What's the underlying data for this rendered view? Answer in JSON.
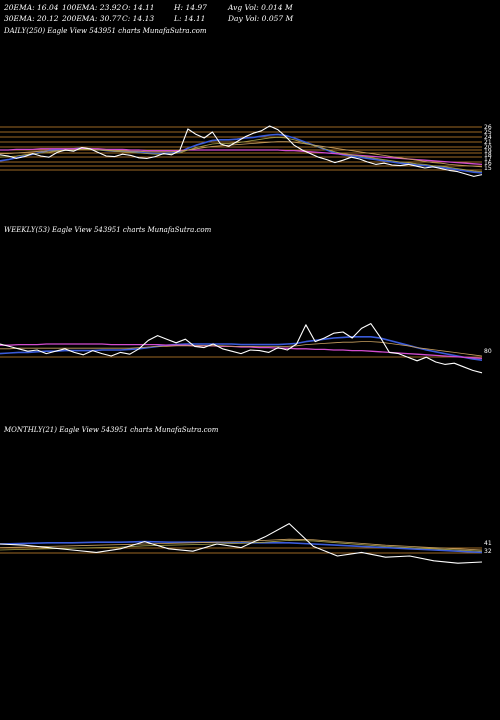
{
  "header": {
    "row1": [
      "20EMA: 16.04",
      "100EMA: 23.92",
      "O: 14.11",
      "H: 14.97",
      "Avg Vol: 0.014  M"
    ],
    "row2": [
      "30EMA: 20.12",
      "200EMA: 30.77",
      "C: 14.13",
      "L: 14.11",
      "Day Vol: 0.057 M"
    ]
  },
  "colors": {
    "background": "#000000",
    "price": "#ffffff",
    "ema_blue": "#3a5bd9",
    "ema_magenta": "#d24ccf",
    "ema_gold": "#c8a060",
    "ema_olive": "#a6a24a",
    "hline_orange": "#d08a30"
  },
  "chart_data": [
    {
      "type": "line",
      "title": "DAILY(250) Eagle   View  543951 charts MunafaSutra.com",
      "right_labels": [
        "26",
        "25",
        "24",
        "21",
        "20",
        "19",
        "18",
        "17",
        "16",
        "15"
      ],
      "series": [
        {
          "role": "price",
          "values": [
            18.2,
            18.0,
            17.6,
            17.9,
            18.4,
            18.0,
            17.8,
            18.6,
            19.0,
            18.8,
            19.4,
            19.2,
            18.6,
            18.0,
            17.9,
            18.3,
            18.1,
            17.7,
            17.6,
            17.9,
            18.4,
            18.2,
            18.9,
            22.5,
            21.6,
            21.0,
            22.0,
            20.0,
            19.6,
            20.4,
            21.2,
            21.8,
            22.2,
            23.0,
            22.4,
            21.2,
            19.8,
            19.0,
            18.4,
            17.8,
            17.4,
            16.9,
            17.3,
            17.8,
            17.5,
            17.0,
            16.6,
            16.8,
            16.5,
            16.4,
            16.6,
            16.3,
            16.0,
            16.2,
            15.9,
            15.6,
            15.4,
            15.0,
            14.6,
            14.9
          ]
        },
        {
          "role": "ema-blue",
          "values": [
            17.2,
            17.4,
            17.7,
            18.0,
            18.3,
            18.6,
            18.9,
            19.0,
            19.1,
            19.2,
            19.3,
            19.2,
            19.1,
            18.9,
            18.8,
            18.8,
            18.7,
            18.6,
            18.5,
            18.4,
            18.4,
            18.5,
            18.7,
            19.3,
            19.8,
            20.2,
            20.6,
            20.7,
            20.7,
            20.8,
            21.0,
            21.1,
            21.3,
            21.5,
            21.6,
            21.4,
            21.0,
            20.5,
            20.0,
            19.5,
            19.0,
            18.5,
            18.2,
            18.0,
            17.8,
            17.6,
            17.4,
            17.2,
            17.0,
            16.8,
            16.7,
            16.5,
            16.4,
            16.2,
            16.1,
            15.9,
            15.7,
            15.5,
            15.3,
            15.2
          ]
        },
        {
          "role": "ema-magenta",
          "values": [
            19.0,
            19.0,
            19.1,
            19.1,
            19.1,
            19.2,
            19.2,
            19.2,
            19.2,
            19.2,
            19.2,
            19.2,
            19.2,
            19.1,
            19.1,
            19.1,
            19.0,
            19.0,
            18.9,
            18.9,
            18.9,
            18.9,
            18.9,
            19.0,
            19.0,
            19.0,
            19.0,
            19.0,
            19.0,
            19.0,
            19.0,
            19.0,
            19.0,
            19.0,
            19.0,
            18.9,
            18.9,
            18.8,
            18.7,
            18.6,
            18.5,
            18.4,
            18.3,
            18.2,
            18.1,
            18.0,
            17.9,
            17.8,
            17.7,
            17.6,
            17.5,
            17.4,
            17.3,
            17.2,
            17.1,
            17.0,
            16.9,
            16.8,
            16.7,
            16.6
          ]
        },
        {
          "role": "ema-gold",
          "values": [
            18.4,
            18.4,
            18.5,
            18.6,
            18.7,
            18.8,
            18.8,
            18.9,
            19.0,
            19.0,
            19.1,
            19.1,
            19.0,
            19.0,
            18.9,
            18.9,
            18.8,
            18.8,
            18.7,
            18.7,
            18.7,
            18.7,
            18.8,
            19.0,
            19.2,
            19.4,
            19.6,
            19.7,
            19.8,
            19.9,
            20.0,
            20.1,
            20.2,
            20.3,
            20.4,
            20.4,
            20.3,
            20.1,
            19.9,
            19.7,
            19.5,
            19.3,
            19.1,
            18.9,
            18.7,
            18.5,
            18.3,
            18.1,
            17.9,
            17.7,
            17.5,
            17.3,
            17.1,
            16.9,
            16.8,
            16.6,
            16.5,
            16.4,
            16.3,
            16.2
          ]
        },
        {
          "role": "ema-olive",
          "values": [
            17.8,
            17.9,
            18.0,
            18.2,
            18.4,
            18.5,
            18.6,
            18.8,
            18.9,
            19.0,
            19.1,
            19.1,
            19.0,
            18.9,
            18.8,
            18.7,
            18.6,
            18.5,
            18.4,
            18.3,
            18.3,
            18.4,
            18.5,
            19.0,
            19.4,
            19.7,
            20.0,
            20.1,
            20.1,
            20.2,
            20.4,
            20.6,
            20.8,
            21.0,
            21.1,
            21.0,
            20.7,
            20.3,
            19.9,
            19.5,
            19.1,
            18.7,
            18.4,
            18.2,
            18.0,
            17.8,
            17.6,
            17.4,
            17.2,
            17.0,
            16.9,
            16.7,
            16.6,
            16.4,
            16.3,
            16.1,
            15.9,
            15.7,
            15.5,
            15.4
          ]
        }
      ]
    },
    {
      "type": "line",
      "title": "WEEKLY(53) Eagle   View  543951 charts MunafaSutra.com",
      "right_labels": [
        "80"
      ],
      "series": [
        {
          "role": "price",
          "values": [
            20.0,
            19.6,
            19.2,
            18.8,
            19.0,
            18.4,
            18.8,
            19.2,
            18.6,
            18.2,
            18.9,
            18.4,
            18.0,
            18.6,
            18.3,
            19.2,
            20.6,
            21.4,
            20.8,
            20.2,
            20.8,
            19.6,
            19.4,
            20.0,
            19.2,
            18.8,
            18.4,
            19.0,
            18.9,
            18.6,
            19.4,
            19.0,
            20.0,
            23.2,
            20.4,
            21.0,
            21.8,
            22.0,
            21.0,
            22.6,
            23.4,
            21.2,
            18.6,
            18.4,
            17.8,
            17.2,
            17.8,
            17.0,
            16.6,
            16.8,
            16.2,
            15.6,
            15.2
          ]
        },
        {
          "role": "ema-blue",
          "values": [
            18.4,
            18.5,
            18.6,
            18.6,
            18.7,
            18.8,
            18.8,
            18.9,
            18.9,
            18.9,
            18.9,
            19.0,
            19.0,
            19.0,
            19.1,
            19.2,
            19.4,
            19.6,
            19.8,
            19.9,
            20.0,
            20.0,
            20.0,
            20.0,
            20.0,
            20.0,
            19.9,
            19.9,
            19.9,
            19.9,
            19.9,
            20.0,
            20.1,
            20.4,
            20.6,
            20.8,
            21.0,
            21.1,
            21.2,
            21.2,
            21.2,
            21.0,
            20.6,
            20.2,
            19.8,
            19.4,
            19.0,
            18.7,
            18.4,
            18.1,
            17.8,
            17.5,
            17.3
          ]
        },
        {
          "role": "ema-magenta",
          "values": [
            19.8,
            19.8,
            19.9,
            19.9,
            19.9,
            20.0,
            20.0,
            20.0,
            20.0,
            20.0,
            20.0,
            20.0,
            19.9,
            19.9,
            19.9,
            19.9,
            19.9,
            19.9,
            19.8,
            19.8,
            19.8,
            19.7,
            19.7,
            19.7,
            19.6,
            19.6,
            19.5,
            19.5,
            19.4,
            19.4,
            19.3,
            19.3,
            19.2,
            19.2,
            19.1,
            19.1,
            19.0,
            19.0,
            18.9,
            18.9,
            18.8,
            18.7,
            18.6,
            18.5,
            18.4,
            18.3,
            18.2,
            18.1,
            18.0,
            17.9,
            17.8,
            17.7,
            17.6
          ]
        },
        {
          "role": "ema-gold",
          "values": [
            19.2,
            19.2,
            19.3,
            19.3,
            19.3,
            19.3,
            19.3,
            19.3,
            19.3,
            19.3,
            19.3,
            19.3,
            19.3,
            19.3,
            19.3,
            19.4,
            19.5,
            19.6,
            19.6,
            19.7,
            19.7,
            19.7,
            19.7,
            19.7,
            19.7,
            19.6,
            19.6,
            19.6,
            19.6,
            19.6,
            19.6,
            19.6,
            19.7,
            19.9,
            20.0,
            20.1,
            20.2,
            20.3,
            20.3,
            20.4,
            20.4,
            20.3,
            20.1,
            19.9,
            19.7,
            19.4,
            19.2,
            19.0,
            18.8,
            18.6,
            18.4,
            18.2,
            18.0
          ]
        }
      ]
    },
    {
      "type": "line",
      "title": "MONTHLY(21) Eagle   View  543951 charts MunafaSutra.com",
      "right_labels": [
        "41",
        "32"
      ],
      "series": [
        {
          "role": "price",
          "values": [
            20.0,
            19.8,
            19.4,
            19.0,
            18.6,
            19.2,
            20.4,
            19.2,
            18.8,
            20.0,
            19.4,
            21.2,
            23.4,
            19.6,
            18.0,
            18.6,
            17.8,
            18.0,
            17.2,
            16.8,
            17.0
          ]
        },
        {
          "role": "ema-blue",
          "values": [
            20.0,
            20.1,
            20.2,
            20.2,
            20.3,
            20.3,
            20.4,
            20.3,
            20.3,
            20.3,
            20.2,
            20.2,
            20.2,
            20.0,
            19.8,
            19.6,
            19.4,
            19.2,
            19.0,
            18.8,
            18.6
          ]
        },
        {
          "role": "ema-gold",
          "values": [
            19.4,
            19.5,
            19.6,
            19.7,
            19.8,
            19.9,
            20.0,
            20.1,
            20.2,
            20.3,
            20.4,
            20.6,
            20.8,
            20.7,
            20.4,
            20.1,
            19.8,
            19.6,
            19.4,
            19.2,
            19.0
          ]
        },
        {
          "role": "ema-olive",
          "values": [
            19.0,
            19.1,
            19.2,
            19.3,
            19.4,
            19.5,
            19.7,
            19.8,
            19.9,
            20.0,
            20.1,
            20.3,
            20.6,
            20.5,
            20.2,
            19.9,
            19.6,
            19.4,
            19.2,
            19.0,
            18.8
          ]
        }
      ]
    }
  ]
}
